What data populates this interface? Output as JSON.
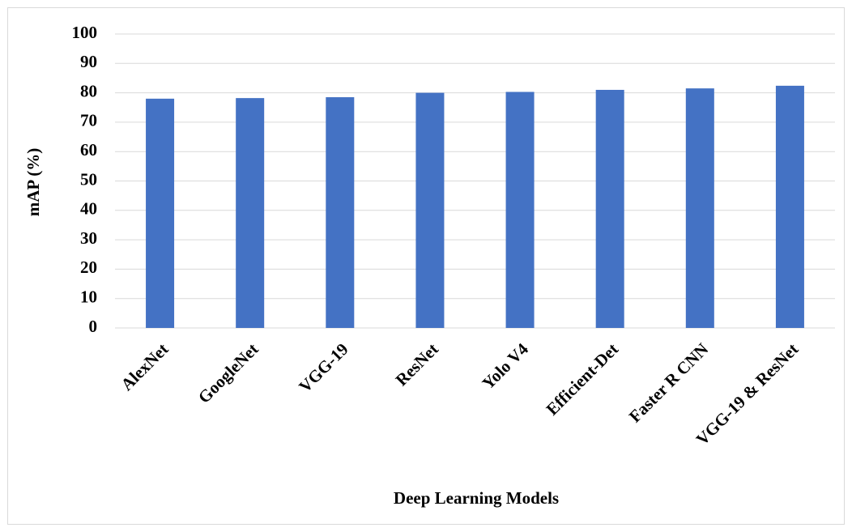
{
  "chart_data": {
    "type": "bar",
    "x_label": "Deep Learning Models",
    "y_label": "mAP (%)",
    "categories": [
      "AlexNet",
      "GoogleNet",
      "VGG-19",
      "ResNet",
      "Yolo V4",
      "Efficient-Det",
      "Faster R CNN",
      "VGG-19 & ResNet"
    ],
    "values": [
      78,
      78.2,
      78.5,
      80,
      80.3,
      81,
      81.5,
      82.4
    ],
    "color": "#4472c4",
    "ylim": [
      0,
      100
    ],
    "yticks": [
      0,
      10,
      20,
      30,
      40,
      50,
      60,
      70,
      80,
      90,
      100
    ],
    "grid": true
  }
}
